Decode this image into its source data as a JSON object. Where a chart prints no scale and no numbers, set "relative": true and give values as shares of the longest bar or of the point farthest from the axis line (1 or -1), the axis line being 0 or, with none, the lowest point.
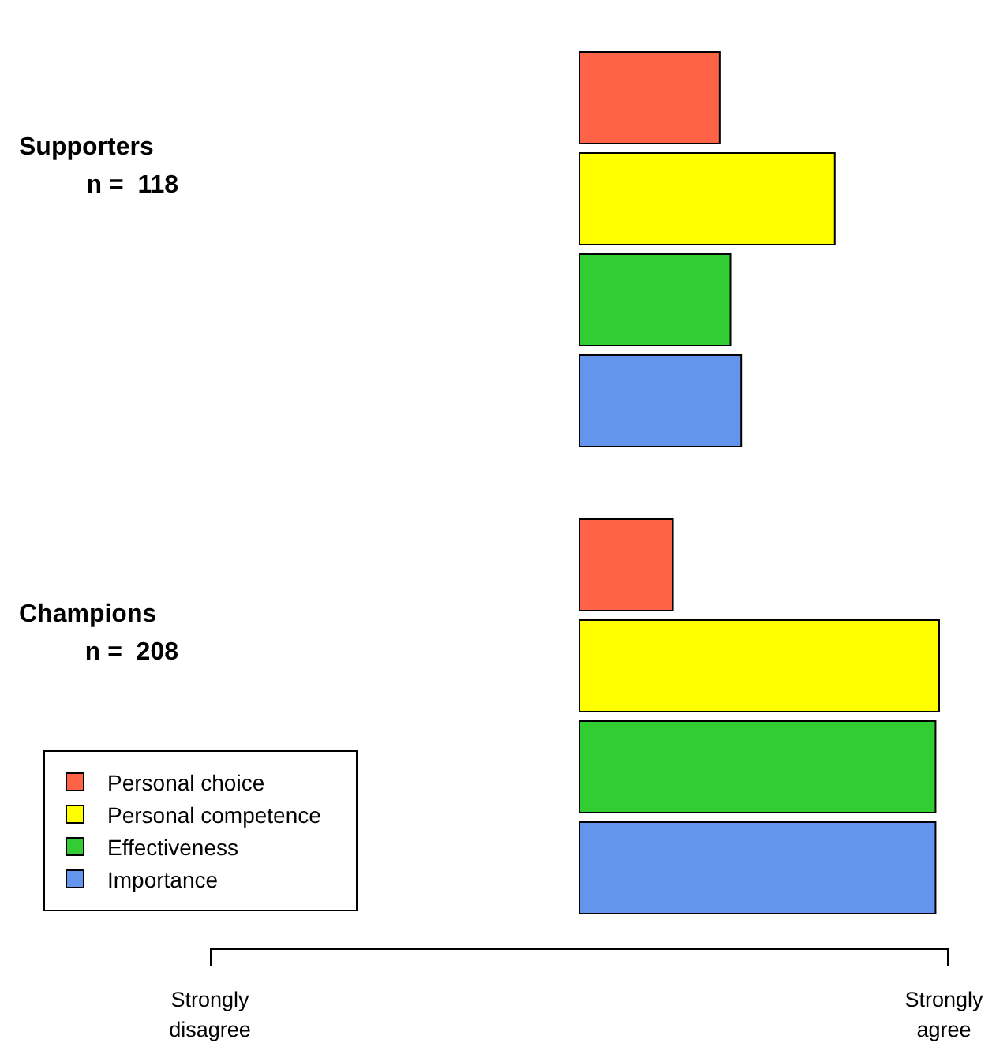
{
  "chart_data": {
    "type": "bar",
    "orientation": "horizontal",
    "relative": true,
    "categories": [
      "Supporters\nn =  118",
      "Champions\nn =  208"
    ],
    "series": [
      {
        "name": "Personal choice",
        "color": "#ff6347",
        "values": [
          0.39,
          0.26
        ]
      },
      {
        "name": "Personal competence",
        "color": "#ffff00",
        "values": [
          0.71,
          1
        ]
      },
      {
        "name": "Effectiveness",
        "color": "#32cd32",
        "values": [
          0.42,
          0.99
        ]
      },
      {
        "name": "Importance",
        "color": "#6495ed",
        "values": [
          0.45,
          0.99
        ]
      }
    ],
    "annotations": [
      "Strongly\ndisagree",
      "Strongly\nagree"
    ],
    "legend": "bottom left"
  }
}
